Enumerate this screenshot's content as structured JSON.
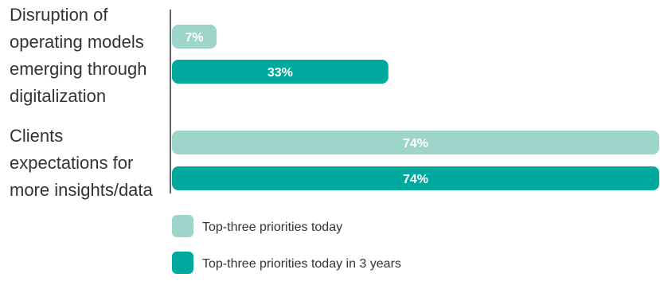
{
  "colors": {
    "light": "#9ed5cb",
    "dark": "#00a99d",
    "text": "#333333",
    "bar_label": "#ffffff",
    "axis": "#333333"
  },
  "chart_data": {
    "type": "bar",
    "orientation": "horizontal",
    "title": "",
    "xlabel": "",
    "ylabel": "",
    "xlim": [
      0,
      74
    ],
    "grid": false,
    "legend_position": "bottom-center",
    "categories": [
      [
        "Disruption of",
        "operating models",
        "emerging through",
        "digitalization"
      ],
      [
        "Clients",
        "expectations for",
        "more insights/data"
      ]
    ],
    "series": [
      {
        "name": "Top-three priorities today",
        "color": "#9ed5cb",
        "values": [
          7,
          74
        ],
        "labels": [
          "7%",
          "74%"
        ]
      },
      {
        "name": "Top-three priorities today in 3 years",
        "color": "#00a99d",
        "values": [
          33,
          74
        ],
        "labels": [
          "33%",
          "74%"
        ]
      }
    ]
  }
}
